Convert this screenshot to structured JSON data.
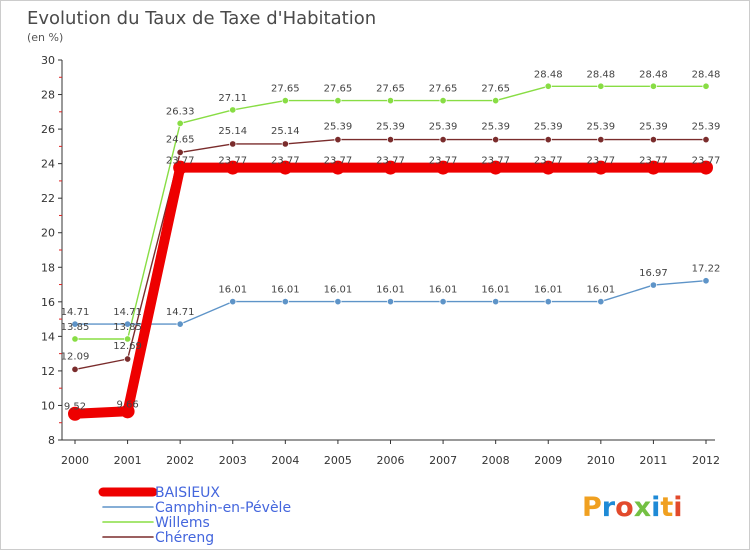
{
  "chart_data": {
    "type": "line",
    "title": "Evolution du Taux de Taxe d'Habitation",
    "subtitle": "(en %)",
    "x": [
      2000,
      2001,
      2002,
      2003,
      2004,
      2005,
      2006,
      2007,
      2008,
      2009,
      2010,
      2011,
      2012
    ],
    "xtick_labels": [
      "2000",
      "2001",
      "2002",
      "2003",
      "2004",
      "2005",
      "2006",
      "2007",
      "2008",
      "2009",
      "2010",
      "2011",
      "2012"
    ],
    "ylim": [
      8,
      30
    ],
    "ytick_labels": [
      "8",
      "10",
      "12",
      "14",
      "16",
      "18",
      "20",
      "22",
      "24",
      "26",
      "28",
      "30"
    ],
    "grid": false,
    "legend_position": "bottom-left",
    "series": [
      {
        "name": "BAISIEUX",
        "color": "#ee0000",
        "values": [
          9.52,
          9.66,
          23.77,
          23.77,
          23.77,
          23.77,
          23.77,
          23.77,
          23.77,
          23.77,
          23.77,
          23.77,
          23.77
        ],
        "labels": [
          "9.52",
          "9.66",
          "23.77",
          "23.77",
          "23.77",
          "23.77",
          "23.77",
          "23.77",
          "23.77",
          "23.77",
          "23.77",
          "23.77",
          "23.77"
        ]
      },
      {
        "name": "Camphin-en-Pévèle",
        "color": "#5e94c8",
        "values": [
          14.71,
          14.71,
          14.71,
          16.01,
          16.01,
          16.01,
          16.01,
          16.01,
          16.01,
          16.01,
          16.01,
          16.97,
          17.22
        ],
        "labels": [
          "14.71",
          "14.71",
          "14.71",
          "16.01",
          "16.01",
          "16.01",
          "16.01",
          "16.01",
          "16.01",
          "16.01",
          "16.01",
          "16.97",
          "17.22"
        ]
      },
      {
        "name": "Willems",
        "color": "#88dd44",
        "values": [
          13.85,
          13.85,
          26.33,
          27.11,
          27.65,
          27.65,
          27.65,
          27.65,
          27.65,
          28.48,
          28.48,
          28.48,
          28.48
        ],
        "labels": [
          "13.85",
          "13.85",
          "26.33",
          "27.11",
          "27.65",
          "27.65",
          "27.65",
          "27.65",
          "27.65",
          "28.48",
          "28.48",
          "28.48",
          "28.48"
        ]
      },
      {
        "name": "Chéreng",
        "color": "#7a2c2c",
        "values": [
          12.09,
          12.69,
          24.65,
          25.14,
          25.14,
          25.39,
          25.39,
          25.39,
          25.39,
          25.39,
          25.39,
          25.39,
          25.39
        ],
        "labels": [
          "12.09",
          "12.69",
          "24.65",
          "25.14",
          "25.14",
          "25.39",
          "25.39",
          "25.39",
          "25.39",
          "25.39",
          "25.39",
          "25.39",
          "25.39"
        ]
      }
    ]
  },
  "logo": {
    "text": "Proxiti"
  }
}
